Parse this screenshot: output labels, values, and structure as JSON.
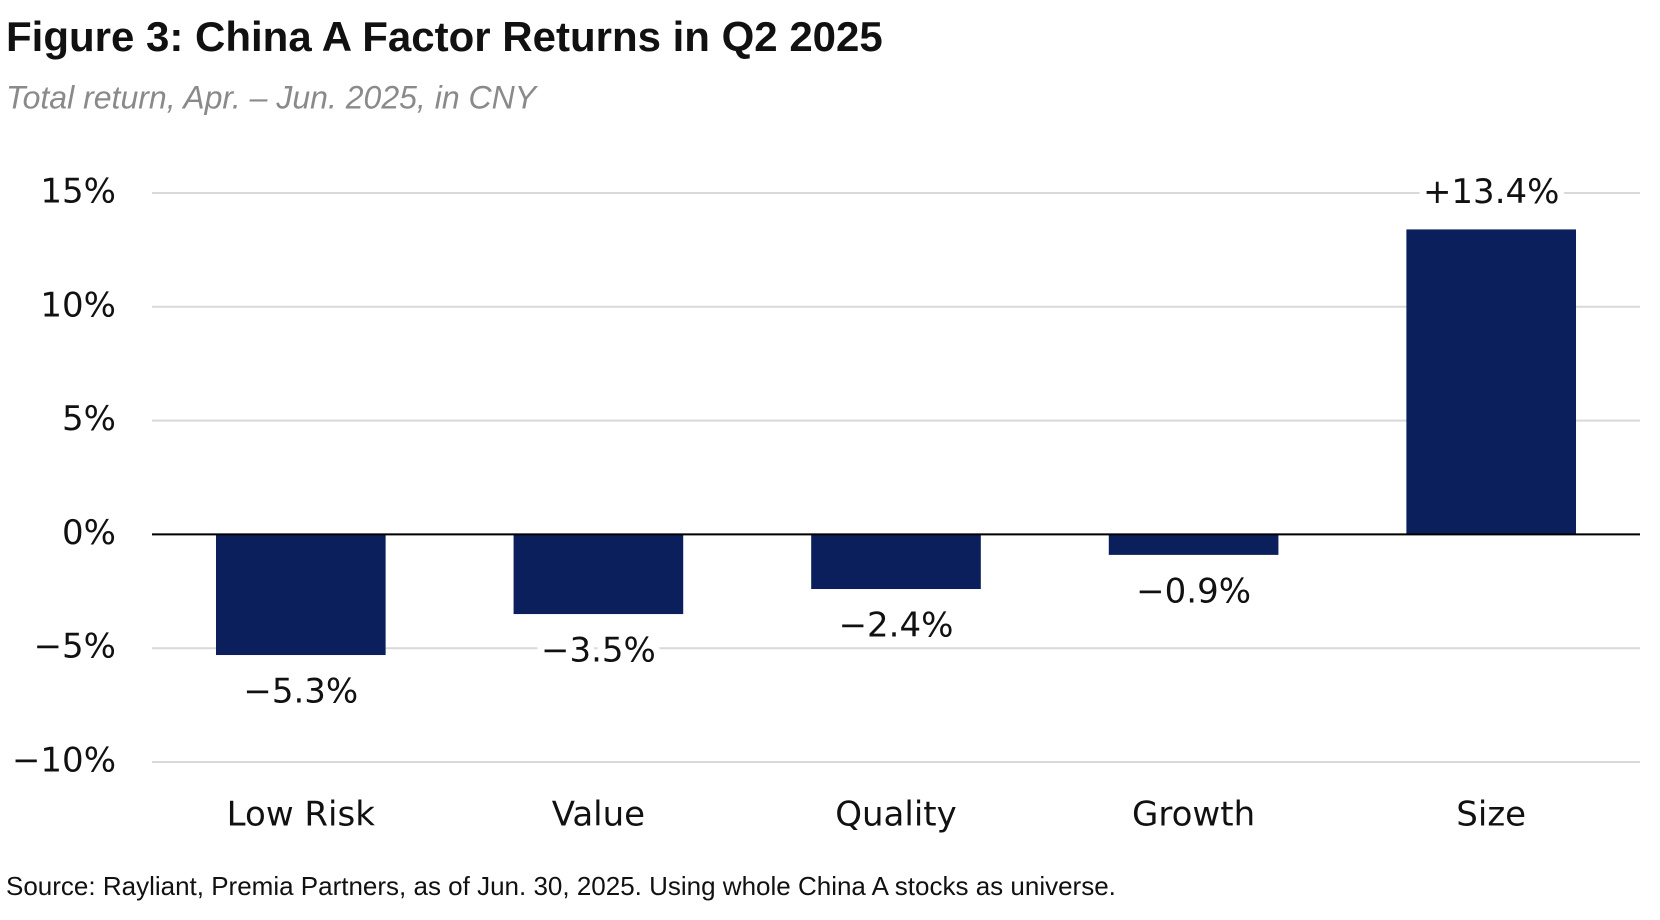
{
  "chart_data": {
    "type": "bar",
    "title": "Figure 3: China A Factor Returns in Q2 2025",
    "subtitle": "Total return, Apr. – Jun. 2025, in CNY",
    "source": "Source: Rayliant, Premia Partners, as of Jun. 30, 2025. Using whole China A stocks as universe.",
    "categories": [
      "Low Risk",
      "Value",
      "Quality",
      "Growth",
      "Size"
    ],
    "values": [
      -5.3,
      -3.5,
      -2.4,
      -0.9,
      13.4
    ],
    "value_labels": [
      "−5.3%",
      "−3.5%",
      "−2.4%",
      "−0.9%",
      "+13.4%"
    ],
    "color": "#0b1f5c",
    "ylim": [
      -10,
      15
    ],
    "yticks": [
      {
        "value": 15,
        "label": "15%"
      },
      {
        "value": 10,
        "label": "10%"
      },
      {
        "value": 5,
        "label": "5%"
      },
      {
        "value": 0,
        "label": "0%"
      },
      {
        "value": -5,
        "label": "−5%"
      },
      {
        "value": -10,
        "label": "−10%"
      }
    ],
    "grid": true
  }
}
